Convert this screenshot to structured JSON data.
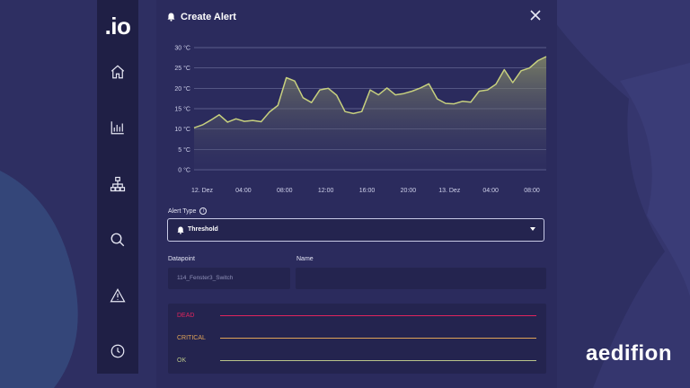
{
  "app": {
    "logo_text": ".io",
    "brand": "aedifion"
  },
  "sidebar": {
    "items": [
      {
        "name": "home",
        "icon": "home-icon"
      },
      {
        "name": "analytics",
        "icon": "bar-chart-icon"
      },
      {
        "name": "hierarchy",
        "icon": "hierarchy-icon"
      },
      {
        "name": "search",
        "icon": "search-icon"
      },
      {
        "name": "alerts",
        "icon": "warning-icon"
      },
      {
        "name": "history",
        "icon": "clock-icon"
      }
    ]
  },
  "dialog": {
    "title": "Create Alert",
    "alert_type_label": "Alert Type",
    "alert_type_value": "Threshold",
    "datapoint_label": "Datapoint",
    "datapoint_value": "114_Fenster3_Switch",
    "name_label": "Name",
    "name_value": "",
    "levels": [
      {
        "label": "DEAD",
        "color": "#e0245e"
      },
      {
        "label": "CRITICAL",
        "color": "#e0a458"
      },
      {
        "label": "OK",
        "color": "#b9c48a"
      }
    ]
  },
  "colors": {
    "background": "#2e2f62",
    "panel": "#2b2b5d",
    "line": "#c7d07e"
  },
  "chart_data": {
    "type": "area",
    "y_ticks": [
      "30 °C",
      "25 °C",
      "20 °C",
      "15 °C",
      "10 °C",
      "5 °C",
      "0 °C"
    ],
    "x_ticks": [
      "12. Dez",
      "04:00",
      "08:00",
      "12:00",
      "16:00",
      "20:00",
      "13. Dez",
      "04:00",
      "08:00"
    ],
    "ylim": [
      0,
      30
    ],
    "grid": true,
    "series": [
      {
        "values": [
          10.3,
          11,
          12.2,
          13.5,
          11.7,
          12.5,
          11.9,
          12.1,
          11.8,
          14.2,
          15.8,
          22.6,
          21.8,
          17.7,
          16.5,
          19.6,
          20,
          18.3,
          14.3,
          13.8,
          14.3,
          19.6,
          18.4,
          20.1,
          18.4,
          18.7,
          19.3,
          20.1,
          21.1,
          17.4,
          16.3,
          16.2,
          16.8,
          16.6,
          19.3,
          19.6,
          21,
          24.6,
          21.4,
          24.3,
          25,
          26.8,
          27.8
        ]
      }
    ]
  }
}
